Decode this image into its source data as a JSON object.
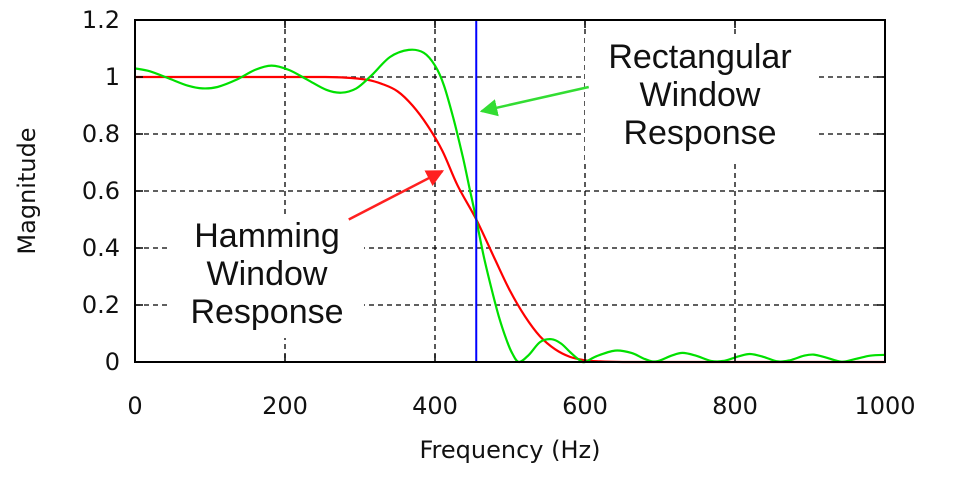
{
  "chart_data": {
    "type": "line",
    "title": "",
    "xlabel": "Frequency (Hz)",
    "ylabel": "Magnitude",
    "xlim": [
      0,
      1000
    ],
    "ylim": [
      0,
      1.2
    ],
    "x_ticks": [
      0,
      200,
      400,
      600,
      800,
      1000
    ],
    "y_ticks": [
      0,
      0.2,
      0.4,
      0.6,
      0.8,
      1,
      1.2
    ],
    "x_tick_labels": [
      "0",
      "200",
      "400",
      "600",
      "800",
      "1000"
    ],
    "y_tick_labels": [
      "0",
      "0.2",
      "0.4",
      "0.6",
      "0.8",
      "1",
      "1.2"
    ],
    "grid": true,
    "grid_style": "dashed",
    "legend": "none",
    "series": [
      {
        "color": "#ff0000",
        "points": [
          [
            0,
            1.0
          ],
          [
            50,
            1.0
          ],
          [
            100,
            1.0
          ],
          [
            150,
            1.0
          ],
          [
            200,
            1.0
          ],
          [
            250,
            1.0
          ],
          [
            280,
            0.998
          ],
          [
            310,
            0.99
          ],
          [
            330,
            0.975
          ],
          [
            350,
            0.95
          ],
          [
            370,
            0.9
          ],
          [
            390,
            0.83
          ],
          [
            410,
            0.74
          ],
          [
            430,
            0.62
          ],
          [
            455,
            0.5
          ],
          [
            480,
            0.36
          ],
          [
            500,
            0.25
          ],
          [
            520,
            0.16
          ],
          [
            540,
            0.09
          ],
          [
            560,
            0.045
          ],
          [
            580,
            0.018
          ],
          [
            600,
            0.006
          ],
          [
            620,
            0.002
          ],
          [
            650,
            0.0
          ],
          [
            700,
            0.0
          ],
          [
            800,
            0.0
          ],
          [
            900,
            0.0
          ],
          [
            1000,
            0.0
          ]
        ]
      },
      {
        "color": "#00e000",
        "points": [
          [
            0,
            1.03
          ],
          [
            20,
            1.02
          ],
          [
            45,
            0.995
          ],
          [
            70,
            0.97
          ],
          [
            90,
            0.96
          ],
          [
            110,
            0.965
          ],
          [
            135,
            0.99
          ],
          [
            160,
            1.025
          ],
          [
            182,
            1.04
          ],
          [
            205,
            1.025
          ],
          [
            230,
            0.99
          ],
          [
            255,
            0.955
          ],
          [
            275,
            0.945
          ],
          [
            295,
            0.96
          ],
          [
            315,
            1.005
          ],
          [
            340,
            1.07
          ],
          [
            365,
            1.095
          ],
          [
            385,
            1.085
          ],
          [
            400,
            1.04
          ],
          [
            412,
            0.97
          ],
          [
            425,
            0.85
          ],
          [
            437,
            0.72
          ],
          [
            446,
            0.61
          ],
          [
            455,
            0.5
          ],
          [
            465,
            0.37
          ],
          [
            475,
            0.26
          ],
          [
            485,
            0.16
          ],
          [
            495,
            0.08
          ],
          [
            503,
            0.03
          ],
          [
            512,
            0.0
          ],
          [
            525,
            0.025
          ],
          [
            540,
            0.07
          ],
          [
            555,
            0.08
          ],
          [
            568,
            0.065
          ],
          [
            580,
            0.035
          ],
          [
            592,
            0.008
          ],
          [
            600,
            0.0
          ],
          [
            615,
            0.02
          ],
          [
            640,
            0.04
          ],
          [
            662,
            0.032
          ],
          [
            680,
            0.01
          ],
          [
            695,
            0.002
          ],
          [
            715,
            0.022
          ],
          [
            730,
            0.032
          ],
          [
            748,
            0.022
          ],
          [
            768,
            0.004
          ],
          [
            785,
            0.004
          ],
          [
            805,
            0.02
          ],
          [
            820,
            0.028
          ],
          [
            838,
            0.018
          ],
          [
            857,
            0.002
          ],
          [
            873,
            0.006
          ],
          [
            892,
            0.022
          ],
          [
            905,
            0.026
          ],
          [
            922,
            0.015
          ],
          [
            942,
            0.001
          ],
          [
            960,
            0.01
          ],
          [
            980,
            0.022
          ],
          [
            1000,
            0.025
          ]
        ]
      }
    ],
    "vertical_line": {
      "x": 455,
      "color": "#0000ff"
    },
    "annotations": [
      {
        "lines": [
          "Rectangular",
          "Window",
          "Response"
        ],
        "arrow_color": "#33dd33",
        "arrow_to": [
          462,
          0.88
        ],
        "arrow_from": [
          605,
          0.965
        ]
      },
      {
        "lines": [
          "Hamming",
          "Window",
          "Response"
        ],
        "arrow_color": "#ff2020",
        "arrow_to": [
          410,
          0.67
        ],
        "arrow_from": [
          285,
          0.5
        ]
      }
    ]
  }
}
